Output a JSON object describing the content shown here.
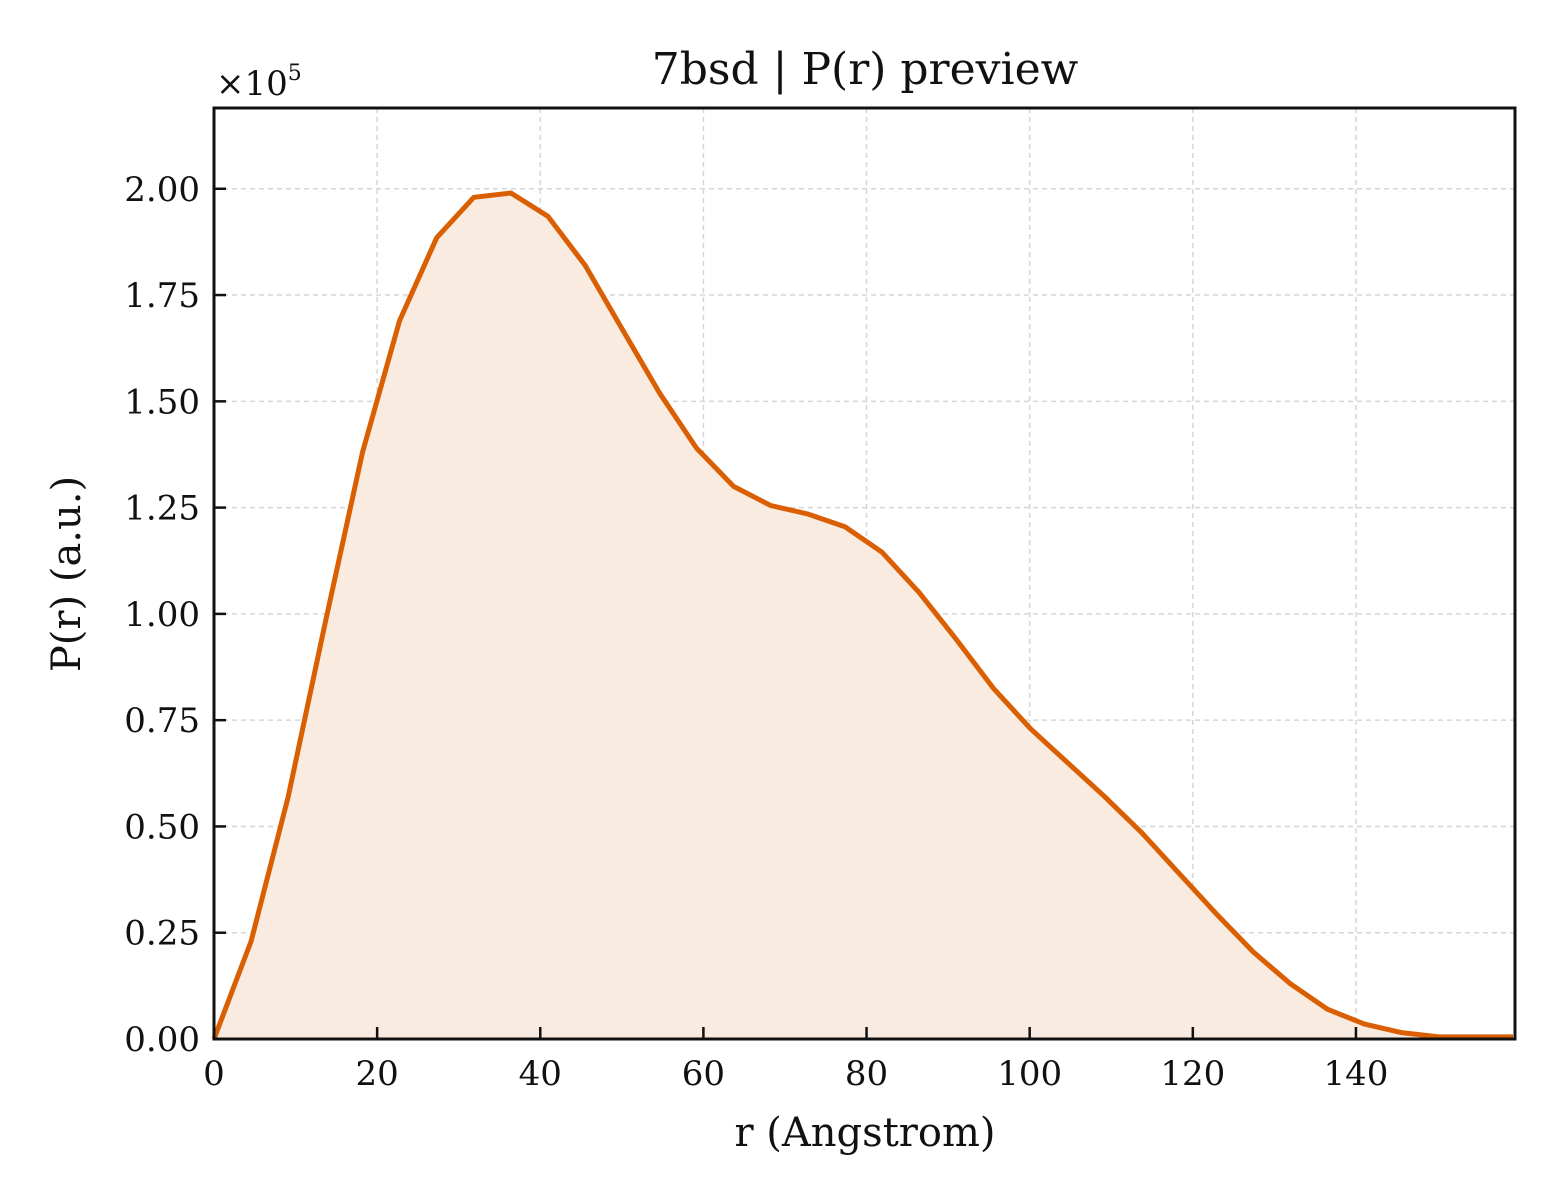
{
  "chart_data": {
    "type": "area",
    "title": "7bsd | P(r) preview",
    "xlabel": "r (Angstrom)",
    "ylabel": "P(r) (a.u.)",
    "y_multiplier": {
      "base": "×10",
      "exponent": "5"
    },
    "xlim": [
      0,
      159.5
    ],
    "ylim": [
      0,
      2.19
    ],
    "x_ticks": [
      0,
      20,
      40,
      60,
      80,
      100,
      120,
      140
    ],
    "x_tick_labels": [
      "0",
      "20",
      "40",
      "60",
      "80",
      "100",
      "120",
      "140"
    ],
    "y_ticks": [
      0,
      0.25,
      0.5,
      0.75,
      1.0,
      1.25,
      1.5,
      1.75,
      2.0
    ],
    "y_tick_labels": [
      "0.00",
      "0.25",
      "0.50",
      "0.75",
      "1.00",
      "1.25",
      "1.50",
      "1.75",
      "2.00"
    ],
    "grid": true,
    "series": [
      {
        "x": [
          0,
          4.55,
          9.1,
          13.65,
          18.2,
          22.75,
          27.3,
          31.85,
          36.4,
          40.95,
          45.5,
          50.05,
          54.6,
          59.15,
          63.7,
          68.25,
          72.8,
          77.35,
          81.9,
          86.45,
          91.0,
          95.55,
          100.1,
          104.65,
          109.2,
          113.75,
          118.3,
          122.85,
          127.4,
          131.95,
          136.5,
          141.05,
          145.6,
          150.15,
          154.7,
          159.25
        ],
        "y": [
          0.0,
          0.23,
          0.57,
          0.98,
          1.38,
          1.69,
          1.885,
          1.98,
          1.99,
          1.935,
          1.82,
          1.67,
          1.52,
          1.39,
          1.3,
          1.255,
          1.235,
          1.205,
          1.145,
          1.05,
          0.94,
          0.825,
          0.73,
          0.65,
          0.57,
          0.485,
          0.39,
          0.295,
          0.205,
          0.13,
          0.07,
          0.035,
          0.015,
          0.005,
          0.005,
          0.005
        ],
        "color": "#d95f02",
        "fill_color": "#f9ebe0"
      }
    ]
  }
}
